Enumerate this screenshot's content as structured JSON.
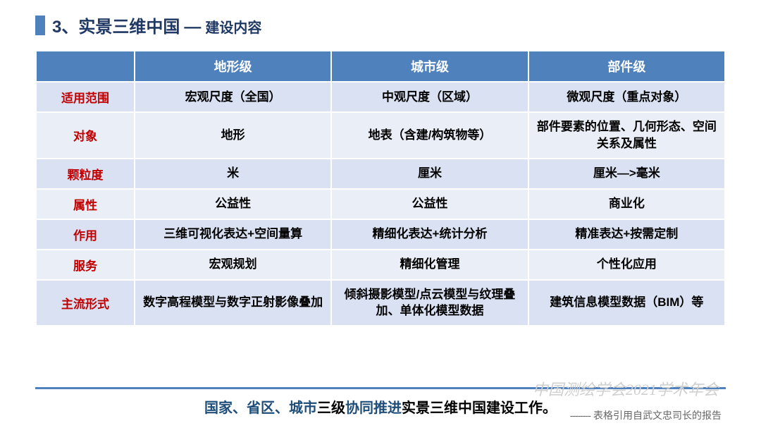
{
  "title": {
    "number": "3、",
    "main": "实景三维中国",
    "dash": "—",
    "sub": "建设内容"
  },
  "table": {
    "header": [
      "",
      "地形级",
      "城市级",
      "部件级"
    ],
    "rows": [
      {
        "label": "适用范围",
        "cells": [
          "宏观尺度（全国）",
          "中观尺度（区域）",
          "微观尺度（重点对象）"
        ]
      },
      {
        "label": "对象",
        "cells": [
          "地形",
          "地表（含建/构筑物等）",
          "部件要素的位置、几何形态、空间关系及属性"
        ]
      },
      {
        "label": "颗粒度",
        "cells": [
          "米",
          "厘米",
          "厘米—>毫米"
        ]
      },
      {
        "label": "属性",
        "cells": [
          "公益性",
          "公益性",
          "商业化"
        ]
      },
      {
        "label": "作用",
        "cells": [
          "三维可视化表达+空间量算",
          "精细化表达+统计分析",
          "精准表达+按需定制"
        ]
      },
      {
        "label": "服务",
        "cells": [
          "宏观规划",
          "精细化管理",
          "个性化应用"
        ]
      },
      {
        "label": "主流形式",
        "cells": [
          "数字高程模型与数字正射影像叠加",
          "倾斜摄影模型/点云模型与纹理叠加、单体化模型数据",
          "建筑信息模型数据（BIM）等"
        ]
      }
    ]
  },
  "summary": {
    "s1": "国家、省区、城市",
    "s2": "三级",
    "s3": "协同推进",
    "s4": "实景三维中国建设工作。"
  },
  "watermark": "中国测绘学会2021学术年会",
  "credit_dash": "--------",
  "credit": "表格引用自武文忠司长的报告"
}
